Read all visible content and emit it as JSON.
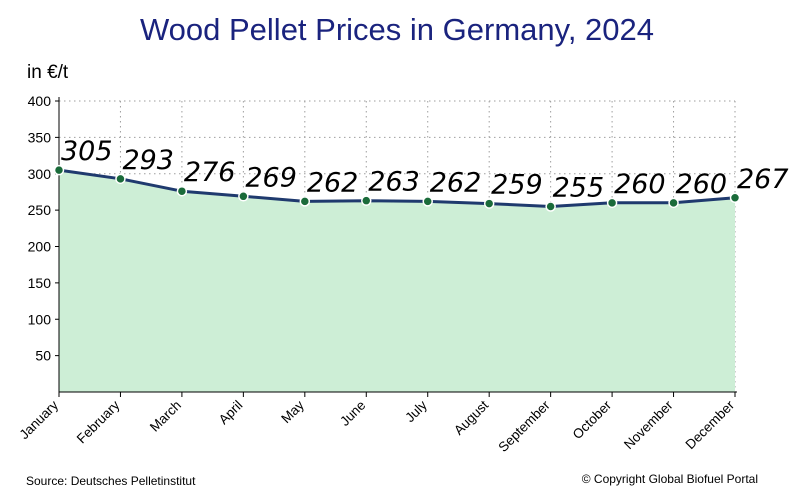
{
  "header": {
    "title": "Wood Pellet Prices in Germany, 2024",
    "unit_label": "in €/t"
  },
  "footer": {
    "source": "Source: Deutsches Pelletinstitut",
    "copyright": "© Copyright Global Biofuel Portal"
  },
  "colors": {
    "title": "#1a237e",
    "line": "#1f3a6e",
    "area_fill": "#cdeed6",
    "marker": "#1a6b3a",
    "grid": "#9e9e9e"
  },
  "chart_data": {
    "type": "area",
    "title": "Wood Pellet Prices in Germany, 2024",
    "ylabel": "in €/t",
    "xlabel": "",
    "categories": [
      "January",
      "February",
      "March",
      "April",
      "May",
      "June",
      "July",
      "August",
      "September",
      "October",
      "November",
      "December"
    ],
    "values": [
      305,
      293,
      276,
      269,
      262,
      263,
      262,
      259,
      255,
      260,
      260,
      267
    ],
    "ylim": [
      0,
      400
    ],
    "yticks": [
      50,
      100,
      150,
      200,
      250,
      300,
      350,
      400
    ],
    "grid": true,
    "legend": "none"
  }
}
